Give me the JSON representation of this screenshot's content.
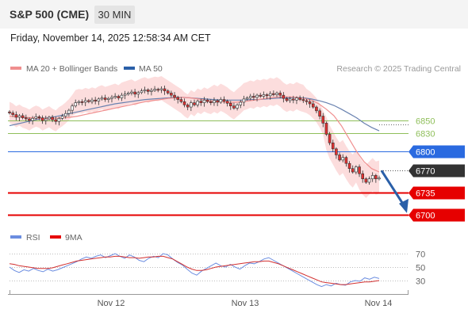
{
  "header": {
    "title": "S&P 500 (CME)",
    "timeframe": "30 MIN",
    "datetime": "Friday, November 14, 2025 12:58:34 AM CET"
  },
  "legend": {
    "ma20_label": "MA 20 + Bollinger Bands",
    "ma50_label": "MA 50",
    "source": "Research © 2025 Trading Central",
    "rsi_label": "RSI",
    "rsi_ma_label": "9MA"
  },
  "colors": {
    "candle_up": "#f8f8f8",
    "candle_down": "#e23030",
    "candle_outline": "#333333",
    "ma20": "#f08f8f",
    "ma50": "#6a82b0",
    "bollinger_fill": "#fbd7d7",
    "level_green": "#8fbf5a",
    "level_blue": "#2a6ae0",
    "level_red": "#e60000",
    "level_current": "#333333",
    "arrow": "#2a5fa8",
    "rsi": "#6b8de0",
    "rsi_ma": "#d23030"
  },
  "chart_data": [
    {
      "type": "candlestick",
      "x_tick_labels": [
        "Nov 12",
        "Nov 13",
        "Nov 14"
      ],
      "ylim": [
        6690,
        6880
      ],
      "levels": [
        {
          "value": 6850,
          "label": "6850",
          "kind": "resistance",
          "color": "#8fbf5a",
          "style": "thin"
        },
        {
          "value": 6830,
          "label": "6830",
          "kind": "resistance",
          "color": "#8fbf5a",
          "style": "thin"
        },
        {
          "value": 6800,
          "label": "6800",
          "kind": "pivot",
          "color": "#2a6ae0",
          "style": "thin"
        },
        {
          "value": 6770,
          "label": "6770",
          "kind": "current",
          "color": "#333333",
          "style": "dotted"
        },
        {
          "value": 6735,
          "label": "6735",
          "kind": "support",
          "color": "#e60000",
          "style": "thick"
        },
        {
          "value": 6700,
          "label": "6700",
          "kind": "support",
          "color": "#e60000",
          "style": "thick"
        }
      ],
      "close_path": [
        6851,
        6848,
        6843,
        6846,
        6842,
        6840,
        6838,
        6841,
        6844,
        6842,
        6838,
        6840,
        6843,
        6839,
        6837,
        6841,
        6845,
        6850,
        6856,
        6864,
        6870,
        6872,
        6871,
        6874,
        6872,
        6875,
        6873,
        6877,
        6879,
        6876,
        6878,
        6880,
        6882,
        6879,
        6884,
        6886,
        6888,
        6890,
        6886,
        6889,
        6892,
        6894,
        6891,
        6893,
        6895,
        6894,
        6896,
        6892,
        6888,
        6884,
        6880,
        6876,
        6872,
        6866,
        6862,
        6870,
        6866,
        6873,
        6870,
        6875,
        6872,
        6870,
        6874,
        6871,
        6876,
        6873,
        6869,
        6864,
        6860,
        6866,
        6871,
        6877,
        6879,
        6882,
        6880,
        6884,
        6882,
        6885,
        6883,
        6887,
        6885,
        6888,
        6884,
        6878,
        6874,
        6877,
        6875,
        6879,
        6876,
        6874,
        6872,
        6868,
        6862,
        6855,
        6845,
        6835,
        6822,
        6812,
        6805,
        6798,
        6792,
        6795,
        6788,
        6782,
        6778,
        6784,
        6776,
        6770,
        6766,
        6770,
        6774,
        6770,
        6771
      ],
      "ma20": [
        6845,
        6844,
        6843,
        6842,
        6841,
        6841,
        6841,
        6842,
        6843,
        6845,
        6848,
        6851,
        6854,
        6857,
        6860,
        6863,
        6866,
        6869,
        6872,
        6874,
        6876,
        6878,
        6879,
        6880,
        6879,
        6877,
        6875,
        6873,
        6872,
        6871,
        6871,
        6872,
        6874,
        6876,
        6878,
        6880,
        6881,
        6881,
        6880,
        6878,
        6875,
        6868,
        6858,
        6846,
        6832,
        6817,
        6802,
        6790,
        6782,
        6778
      ],
      "ma50": [
        6832,
        6834,
        6836,
        6838,
        6840,
        6842,
        6844,
        6847,
        6850,
        6853,
        6856,
        6859,
        6862,
        6865,
        6868,
        6870,
        6872,
        6874,
        6876,
        6877,
        6878,
        6879,
        6880,
        6880,
        6879,
        6878,
        6877,
        6876,
        6875,
        6875,
        6875,
        6875,
        6876,
        6876,
        6877,
        6878,
        6879,
        6879,
        6880,
        6879,
        6877,
        6874,
        6870,
        6865,
        6858,
        6850,
        6842,
        6835,
        6830,
        6826
      ],
      "forecast_arrow": {
        "from": 6770,
        "to": 6700
      }
    },
    {
      "type": "line",
      "title": "RSI",
      "y_tick_labels": [
        "70",
        "50",
        "30"
      ],
      "ylim": [
        10,
        80
      ],
      "rsi": [
        50,
        45,
        42,
        46,
        44,
        48,
        45,
        43,
        47,
        44,
        46,
        49,
        52,
        55,
        58,
        62,
        65,
        63,
        66,
        68,
        64,
        67,
        70,
        66,
        63,
        68,
        65,
        60,
        58,
        63,
        66,
        64,
        70,
        68,
        62,
        57,
        53,
        47,
        41,
        38,
        44,
        48,
        52,
        56,
        52,
        50,
        54,
        50,
        47,
        52,
        56,
        55,
        58,
        62,
        64,
        60,
        56,
        52,
        48,
        44,
        40,
        36,
        32,
        28,
        24,
        21,
        24,
        22,
        26,
        24,
        23,
        28,
        30,
        29,
        34,
        32,
        35,
        33
      ],
      "rsi_ma": [
        55,
        54,
        52,
        51,
        50,
        49,
        48,
        48,
        48,
        49,
        51,
        53,
        55,
        57,
        59,
        60,
        61,
        62,
        63,
        64,
        65,
        65,
        66,
        66,
        65,
        64,
        64,
        63,
        64,
        65,
        65,
        66,
        66,
        64,
        62,
        58,
        54,
        50,
        47,
        45,
        45,
        46,
        48,
        50,
        51,
        52,
        53,
        54,
        55,
        56,
        57,
        58,
        58,
        59,
        59,
        57,
        55,
        52,
        49,
        46,
        43,
        40,
        37,
        34,
        31,
        28,
        27,
        26,
        25,
        24,
        24,
        25,
        26,
        27,
        28,
        28,
        29,
        30
      ]
    }
  ]
}
